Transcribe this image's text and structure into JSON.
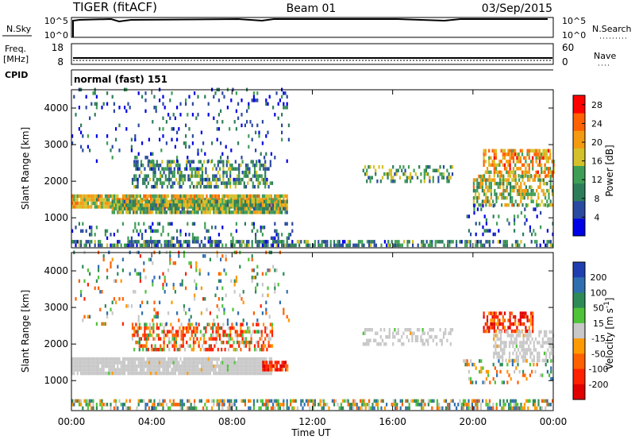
{
  "header": {
    "station": "TIGER (fitACF)",
    "beam": "Beam 01",
    "date": "03/Sep/2015"
  },
  "panels": {
    "nsky": {
      "label": "N.Sky",
      "left_ticks": [
        "10^5",
        "10^0"
      ],
      "right_ticks": [
        "10^5",
        "10^0"
      ],
      "right_label": "N.Search"
    },
    "freq": {
      "label_line1": "Freq.",
      "label_line2": "[MHz]",
      "left_ticks": [
        "18",
        "8"
      ],
      "right_ticks": [
        "60",
        "0"
      ],
      "right_label": "Nave"
    },
    "cpid": {
      "label": "CPID",
      "value": "normal (fast) 151"
    }
  },
  "chart_data": [
    {
      "type": "heatmap",
      "name": "power",
      "ylabel": "Slant Range [km]",
      "xlabel": "Time UT",
      "ylim": [
        180,
        4500
      ],
      "y_ticks": [
        1000,
        2000,
        3000,
        4000
      ],
      "x_ticks": [
        "00:00",
        "04:00",
        "08:00",
        "12:00",
        "16:00",
        "20:00",
        "00:00"
      ],
      "xlim_hours": [
        0,
        24
      ],
      "colorbar": {
        "label": "Power [dB]",
        "ticks": [
          4,
          8,
          12,
          16,
          20,
          24,
          28
        ],
        "range": [
          0,
          30
        ],
        "colors": [
          "#0000e6",
          "#2a49a0",
          "#2e7d5a",
          "#3f9e55",
          "#d4c02a",
          "#f49a10",
          "#ff6000",
          "#ff0000"
        ]
      },
      "regions": [
        {
          "t0": 0.0,
          "t1": 10.7,
          "r0": 1250,
          "r1": 1550,
          "value": 18,
          "density": 0.95
        },
        {
          "t0": 2.0,
          "t1": 10.7,
          "r0": 1100,
          "r1": 1450,
          "value": 14,
          "density": 0.9
        },
        {
          "t0": 3.0,
          "t1": 10.0,
          "r0": 1800,
          "r1": 2500,
          "value": 10,
          "density": 0.55
        },
        {
          "t0": 0.0,
          "t1": 10.8,
          "r0": 2500,
          "r1": 4500,
          "value": 6,
          "density": 0.08
        },
        {
          "t0": 0.0,
          "t1": 11.0,
          "r0": 200,
          "r1": 800,
          "value": 8,
          "density": 0.18
        },
        {
          "t0": 0.0,
          "t1": 24.0,
          "r0": 200,
          "r1": 330,
          "value": 10,
          "density": 0.55
        },
        {
          "t0": 14.5,
          "t1": 19.0,
          "r0": 1950,
          "r1": 2400,
          "value": 12,
          "density": 0.35
        },
        {
          "t0": 20.5,
          "t1": 24.0,
          "r0": 2100,
          "r1": 2800,
          "value": 20,
          "density": 0.6
        },
        {
          "t0": 20.0,
          "t1": 24.0,
          "r0": 1300,
          "r1": 2100,
          "value": 16,
          "density": 0.55
        },
        {
          "t0": 19.5,
          "t1": 24.0,
          "r0": 500,
          "r1": 1300,
          "value": 7,
          "density": 0.12
        }
      ]
    },
    {
      "type": "heatmap",
      "name": "velocity",
      "ylabel": "Slant Range [km]",
      "xlabel": "Time UT",
      "ylim": [
        180,
        4500
      ],
      "y_ticks": [
        1000,
        2000,
        3000,
        4000
      ],
      "x_ticks": [
        "00:00",
        "04:00",
        "08:00",
        "12:00",
        "16:00",
        "20:00",
        "00:00"
      ],
      "xlim_hours": [
        0,
        24
      ],
      "colorbar": {
        "label": "Velocity [m s^-1]",
        "ticks": [
          "200",
          "100",
          "50",
          "15",
          "-15",
          "-50",
          "-100",
          "-200"
        ],
        "colors": [
          "#1f3fb0",
          "#2f6fb0",
          "#2e8b57",
          "#4ec33a",
          "#c8c8c8",
          "#ff9a00",
          "#ff6000",
          "#ff2000",
          "#e00000"
        ]
      },
      "regions": [
        {
          "t0": 0.0,
          "t1": 10.0,
          "r0": 1150,
          "r1": 1550,
          "value": 0,
          "density": 0.95
        },
        {
          "t0": 9.5,
          "t1": 10.8,
          "r0": 1250,
          "r1": 1450,
          "value": -150,
          "density": 0.9
        },
        {
          "t0": 3.0,
          "t1": 10.0,
          "r0": 1800,
          "r1": 2500,
          "value": -60,
          "density": 0.5
        },
        {
          "t0": 0.0,
          "t1": 10.8,
          "r0": 2500,
          "r1": 4500,
          "value": 20,
          "density": 0.09
        },
        {
          "t0": 0.0,
          "t1": 24.0,
          "r0": 200,
          "r1": 400,
          "value": 30,
          "density": 0.5
        },
        {
          "t0": 14.5,
          "t1": 19.0,
          "r0": 1950,
          "r1": 2400,
          "value": 0,
          "density": 0.35
        },
        {
          "t0": 20.5,
          "t1": 23.0,
          "r0": 2300,
          "r1": 2800,
          "value": -150,
          "density": 0.6
        },
        {
          "t0": 21.0,
          "t1": 24.0,
          "r0": 1500,
          "r1": 2300,
          "value": 0,
          "density": 0.55
        },
        {
          "t0": 19.5,
          "t1": 24.0,
          "r0": 900,
          "r1": 1500,
          "value": 40,
          "density": 0.2
        }
      ]
    }
  ]
}
